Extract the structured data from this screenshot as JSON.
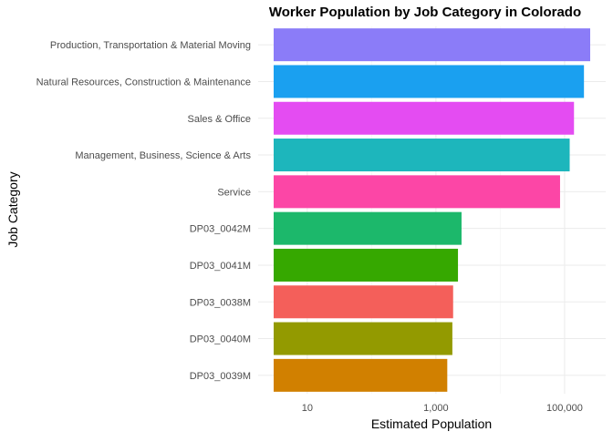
{
  "chart_data": {
    "type": "bar",
    "orientation": "horizontal",
    "title": "Worker Population by Job Category in Colorado",
    "xlabel": "Estimated Population",
    "ylabel": "Job Category",
    "x_scale": "log10",
    "xlim": [
      3,
      330000
    ],
    "x_ticks": [
      10,
      1000,
      100000
    ],
    "x_tick_labels": [
      "10",
      "1,000",
      "100,000"
    ],
    "grid": true,
    "legend": "none",
    "categories": [
      "Production, Transportation & Material Moving",
      "Natural Resources, Construction & Maintenance",
      "Sales & Office",
      "Management, Business, Science & Arts",
      "Service",
      "DP03_0042M",
      "DP03_0041M",
      "DP03_0038M",
      "DP03_0040M",
      "DP03_0039M"
    ],
    "values": [
      250000,
      200000,
      140000,
      120000,
      85000,
      2500,
      2200,
      1850,
      1800,
      1500
    ],
    "colors": [
      "#8b7cf8",
      "#1aa0f0",
      "#e44cf2",
      "#1db6bc",
      "#fc46a6",
      "#1cb86b",
      "#36a800",
      "#f45f5a",
      "#939a00",
      "#d18000"
    ]
  }
}
